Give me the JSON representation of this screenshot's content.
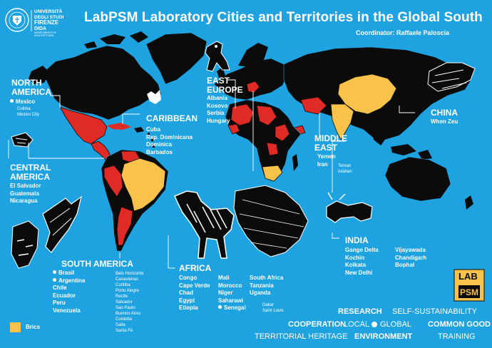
{
  "title": "LabPSM Laboratory Cities and Territories in the Global South",
  "coordinator": "Coordinator: Raffaele Paloscia",
  "logo": {
    "lines": [
      "UNIVERSITÀ",
      "DEGLI STUDI",
      "FIRENZE"
    ],
    "dept": "DIDA",
    "dept_sub": "DIPARTIMENTO DI ARCHITETTURA"
  },
  "lab_logo": {
    "top": "LAB",
    "bottom": "PSM"
  },
  "colors": {
    "ocean": "#1fa3e0",
    "land": "#0b0b0b",
    "highlight": "#e02a26",
    "brics": "#f9c34b"
  },
  "regions": {
    "north_america": {
      "title_lines": [
        "NORTH",
        "AMERICA"
      ],
      "country": "Mexico",
      "cities": [
        "Colima",
        "Mexico City"
      ]
    },
    "central_america": {
      "title_lines": [
        "CENTRAL",
        "AMERICA"
      ],
      "countries": [
        "El Salvador",
        "Guatemala",
        "Nicaragua"
      ]
    },
    "caribbean": {
      "title": "CARIBBEAN",
      "countries": [
        "Cuba",
        "Rep. Dominicana",
        "Dominica",
        "Barbados"
      ]
    },
    "south_america": {
      "title": "SOUTH AMERICA",
      "countries": [
        "Brasil",
        "Argentina",
        "Chile",
        "Ecuador",
        "Peru",
        "Venezuela"
      ],
      "cities": [
        "Belo Horizonte",
        "Canavieiras",
        "Curitiba",
        "Porto Alegre",
        "Recife",
        "Salvador",
        "Sao Paulo",
        "Buenos Aires",
        "Cordoba",
        "Salta",
        "Santa Fè"
      ]
    },
    "east_europe": {
      "title_lines": [
        "EAST",
        "EUROPE"
      ],
      "countries": [
        "Albania",
        "Kosovo",
        "Serbia",
        "Hungary"
      ]
    },
    "middle_east": {
      "title_lines": [
        "MIDDLE",
        "EAST"
      ],
      "countries": [
        "Yemen",
        "Iran"
      ],
      "cities": [
        "Tehran",
        "Isfahan"
      ]
    },
    "china": {
      "title": "CHINA",
      "city": "When Zeu"
    },
    "africa": {
      "title": "AFRICA",
      "col1": [
        "Congo",
        "Cape Verde",
        "Chad",
        "Egypt",
        "Etiopia"
      ],
      "col2": [
        "Mali",
        "Morocco",
        "Niger",
        "Saharawi",
        "Senegal"
      ],
      "col3": [
        "South Africa",
        "Tanzania",
        "Uganda"
      ],
      "senegal_cities": [
        "Dakar",
        "Saint Louis"
      ]
    },
    "india": {
      "title": "INDIA",
      "col1": [
        "Gange Delta",
        "Kochin",
        "Kolkata",
        "New Delhi"
      ],
      "col2": [
        "Vijayawada",
        "Chandigarh",
        "Bophal"
      ]
    }
  },
  "legend": {
    "brics": "Brics"
  },
  "keywords": {
    "research": "RESEARCH",
    "self_sustainability": "SELF-SUSTAINABILITY",
    "cooperation": "COOPERATION",
    "local": "LOCAL",
    "global": "GLOBAL",
    "common_good": "COMMON GOOD",
    "territorial_heritage": "TERRITORIAL HERITAGE",
    "environment": "ENVIRONMENT",
    "training": "TRAINING"
  }
}
